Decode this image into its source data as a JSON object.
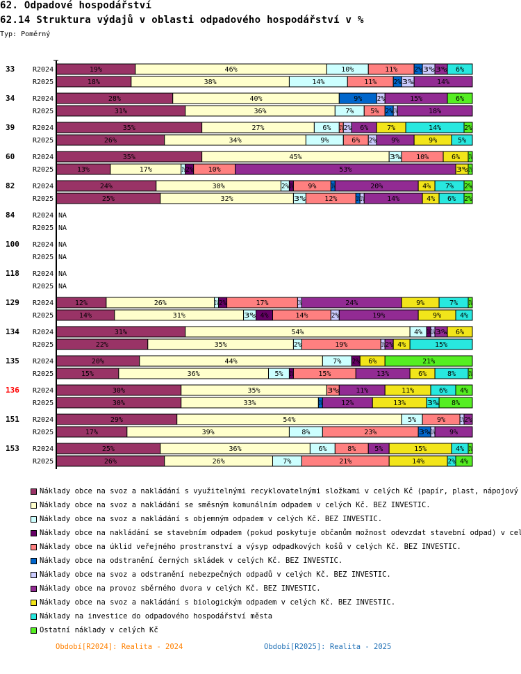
{
  "header": {
    "title": "62. Odpadové hospodářství",
    "subtitle": "62.14 Struktura výdajů v oblasti odpadového hospodářství v %",
    "type_label": "Typ: Poměrný"
  },
  "chart_data": {
    "type": "bar",
    "orientation": "horizontal",
    "stacked": "percent",
    "title": "62.14 Struktura výdajů v oblasti odpadového hospodářství v %",
    "xlim": [
      0,
      100
    ],
    "highlight_group": "136",
    "highlight_color": "#ff0000",
    "na_label": "NA",
    "series": [
      {
        "name": "Náklady obce na svoz a nakládání s využitelnými recyklovatelnými složkami v celých Kč (papír, plast, nápojový karto",
        "color": "#993366"
      },
      {
        "name": "Náklady obce na svoz a nakládání se směsným komunálním odpadem v celých Kč.  BEZ INVESTIC.",
        "color": "#ffffcc"
      },
      {
        "name": "Náklady obce na svoz a nakládání s objemným odpadem v celých Kč.  BEZ INVESTIC.",
        "color": "#ccffff"
      },
      {
        "name": "Náklady obce na nakládání se stavebním odpadem (pokud poskytuje občanům možnost odevzdat stavební odpad) v celých K",
        "color": "#660066"
      },
      {
        "name": "Náklady obce na úklid veřejného prostranství a výsyp odpadkových košů v celých Kč.  BEZ INVESTIC.",
        "color": "#ff8080"
      },
      {
        "name": "Náklady obce na odstranění černých skládek v celých Kč.  BEZ INVESTIC.",
        "color": "#0066cc"
      },
      {
        "name": "Náklady obce na svoz a odstranění nebezpečných odpadů v celých Kč.  BEZ INVESTIC.",
        "color": "#ccccff"
      },
      {
        "name": "Náklady obce na provoz sběrného dvora v celých Kč.  BEZ INVESTIC.",
        "color": "#922b93"
      },
      {
        "name": "Náklady obce na svoz a nakládání s biologickým odpadem v celých Kč.  BEZ INVESTIC.",
        "color": "#f2e51a"
      },
      {
        "name": "Náklady na investice do odpadového hospodářství města",
        "color": "#28e8df"
      },
      {
        "name": "Ostatní náklady v celých Kč",
        "color": "#55ee22"
      }
    ],
    "groups": [
      {
        "label": "33",
        "rows": [
          {
            "period": "R2024",
            "values": [
              19,
              46,
              10,
              0,
              11,
              2,
              3,
              3,
              0,
              6,
              0
            ]
          },
          {
            "period": "R2025",
            "values": [
              18,
              38,
              14,
              0,
              11,
              2,
              3,
              14,
              0,
              0,
              0
            ]
          }
        ]
      },
      {
        "label": "34",
        "rows": [
          {
            "period": "R2024",
            "values": [
              28,
              40,
              0,
              0,
              0,
              9,
              2,
              15,
              0,
              0,
              6
            ]
          },
          {
            "period": "R2025",
            "values": [
              31,
              36,
              7,
              0,
              5,
              2,
              1,
              18,
              0,
              0,
              0
            ]
          }
        ]
      },
      {
        "label": "39",
        "rows": [
          {
            "period": "R2024",
            "values": [
              35,
              27,
              6,
              0,
              1,
              0,
              2,
              6,
              7,
              14,
              2
            ]
          },
          {
            "period": "R2025",
            "values": [
              26,
              34,
              9,
              0,
              6,
              0,
              2,
              9,
              9,
              5,
              0
            ]
          }
        ]
      },
      {
        "label": "60",
        "rows": [
          {
            "period": "R2024",
            "values": [
              35,
              45,
              3,
              0,
              10,
              0,
              0,
              0,
              6,
              0,
              1
            ]
          },
          {
            "period": "R2025",
            "values": [
              13,
              17,
              1,
              2,
              10,
              0,
              0,
              53,
              3,
              0,
              1
            ]
          }
        ]
      },
      {
        "label": "82",
        "rows": [
          {
            "period": "R2024",
            "values": [
              24,
              30,
              2,
              1,
              9,
              1,
              0,
              20,
              4,
              7,
              2
            ]
          },
          {
            "period": "R2025",
            "values": [
              25,
              32,
              3,
              0,
              12,
              1,
              1,
              14,
              4,
              6,
              2
            ]
          }
        ]
      },
      {
        "label": "84",
        "rows": [
          {
            "period": "R2024",
            "values": null
          },
          {
            "period": "R2025",
            "values": null
          }
        ]
      },
      {
        "label": "100",
        "rows": [
          {
            "period": "R2024",
            "values": null
          },
          {
            "period": "R2025",
            "values": null
          }
        ]
      },
      {
        "label": "118",
        "rows": [
          {
            "period": "R2024",
            "values": null
          },
          {
            "period": "R2025",
            "values": null
          }
        ]
      },
      {
        "label": "129",
        "rows": [
          {
            "period": "R2024",
            "values": [
              12,
              26,
              1,
              2,
              17,
              0,
              1,
              24,
              9,
              7,
              1
            ]
          },
          {
            "period": "R2025",
            "values": [
              14,
              31,
              3,
              4,
              14,
              0,
              2,
              19,
              9,
              4,
              0
            ]
          }
        ]
      },
      {
        "label": "134",
        "rows": [
          {
            "period": "R2024",
            "values": [
              31,
              54,
              4,
              1,
              0,
              0,
              1,
              3,
              6,
              0,
              0
            ]
          },
          {
            "period": "R2025",
            "values": [
              22,
              35,
              2,
              0,
              19,
              0,
              1,
              2,
              4,
              15,
              0
            ]
          }
        ]
      },
      {
        "label": "135",
        "rows": [
          {
            "period": "R2024",
            "values": [
              20,
              44,
              7,
              2,
              0,
              0,
              0,
              0,
              6,
              0,
              21
            ]
          },
          {
            "period": "R2025",
            "values": [
              15,
              36,
              5,
              1,
              15,
              0,
              0,
              13,
              6,
              8,
              1
            ]
          }
        ]
      },
      {
        "label": "136",
        "rows": [
          {
            "period": "R2024",
            "values": [
              30,
              35,
              0,
              0,
              3,
              0,
              0,
              11,
              11,
              6,
              4
            ]
          },
          {
            "period": "R2025",
            "values": [
              30,
              33,
              0,
              0,
              0,
              1,
              0,
              12,
              13,
              3,
              8
            ]
          }
        ]
      },
      {
        "label": "151",
        "rows": [
          {
            "period": "R2024",
            "values": [
              29,
              54,
              5,
              0,
              9,
              0,
              1,
              2,
              0,
              0,
              0
            ]
          },
          {
            "period": "R2025",
            "values": [
              17,
              39,
              8,
              0,
              23,
              3,
              1,
              9,
              0,
              0,
              0
            ]
          }
        ]
      },
      {
        "label": "153",
        "rows": [
          {
            "period": "R2024",
            "values": [
              25,
              36,
              6,
              0,
              8,
              0,
              0,
              5,
              15,
              4,
              1
            ]
          },
          {
            "period": "R2025",
            "values": [
              26,
              26,
              7,
              0,
              21,
              0,
              0,
              0,
              14,
              2,
              4
            ]
          }
        ]
      }
    ]
  },
  "footer": {
    "period_2024": "Období[R2024]: Realita - 2024",
    "period_2025": "Období[R2025]: Realita - 2025"
  }
}
